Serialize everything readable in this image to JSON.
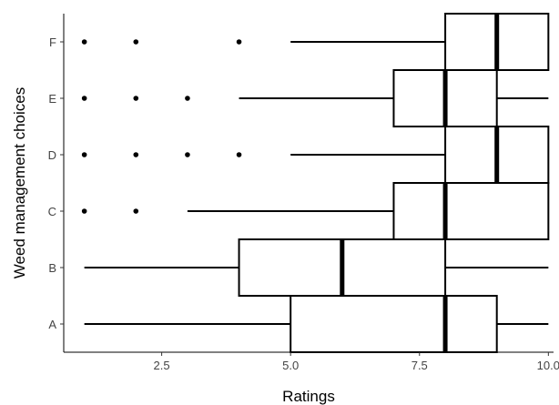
{
  "chart_data": {
    "type": "boxplot",
    "orientation": "horizontal",
    "xlabel": "Ratings",
    "ylabel": "Weed management choices",
    "xlim": [
      0.6,
      10.1
    ],
    "x_ticks": [
      2.5,
      5.0,
      7.5,
      10.0
    ],
    "x_tick_labels": [
      "2.5",
      "5.0",
      "7.5",
      "10.0"
    ],
    "grid": false,
    "colors": {
      "stroke": "#000000",
      "box_fill": "#ffffff"
    },
    "categories": [
      "A",
      "B",
      "C",
      "D",
      "E",
      "F"
    ],
    "boxes": [
      {
        "category": "A",
        "whisker_low": 1,
        "q1": 5,
        "median": 8,
        "q3": 9,
        "whisker_high": 10,
        "outliers": []
      },
      {
        "category": "B",
        "whisker_low": 1,
        "q1": 4,
        "median": 6,
        "q3": 8,
        "whisker_high": 10,
        "outliers": []
      },
      {
        "category": "C",
        "whisker_low": 3,
        "q1": 7,
        "median": 8,
        "q3": 10,
        "whisker_high": 10,
        "outliers": [
          1,
          2
        ]
      },
      {
        "category": "D",
        "whisker_low": 5,
        "q1": 8,
        "median": 9,
        "q3": 10,
        "whisker_high": 10,
        "outliers": [
          1,
          2,
          3,
          4
        ]
      },
      {
        "category": "E",
        "whisker_low": 4,
        "q1": 7,
        "median": 8,
        "q3": 9,
        "whisker_high": 10,
        "outliers": [
          1,
          2,
          3
        ]
      },
      {
        "category": "F",
        "whisker_low": 5,
        "q1": 8,
        "median": 9,
        "q3": 10,
        "whisker_high": 10,
        "outliers": [
          1,
          2,
          4
        ]
      }
    ]
  }
}
